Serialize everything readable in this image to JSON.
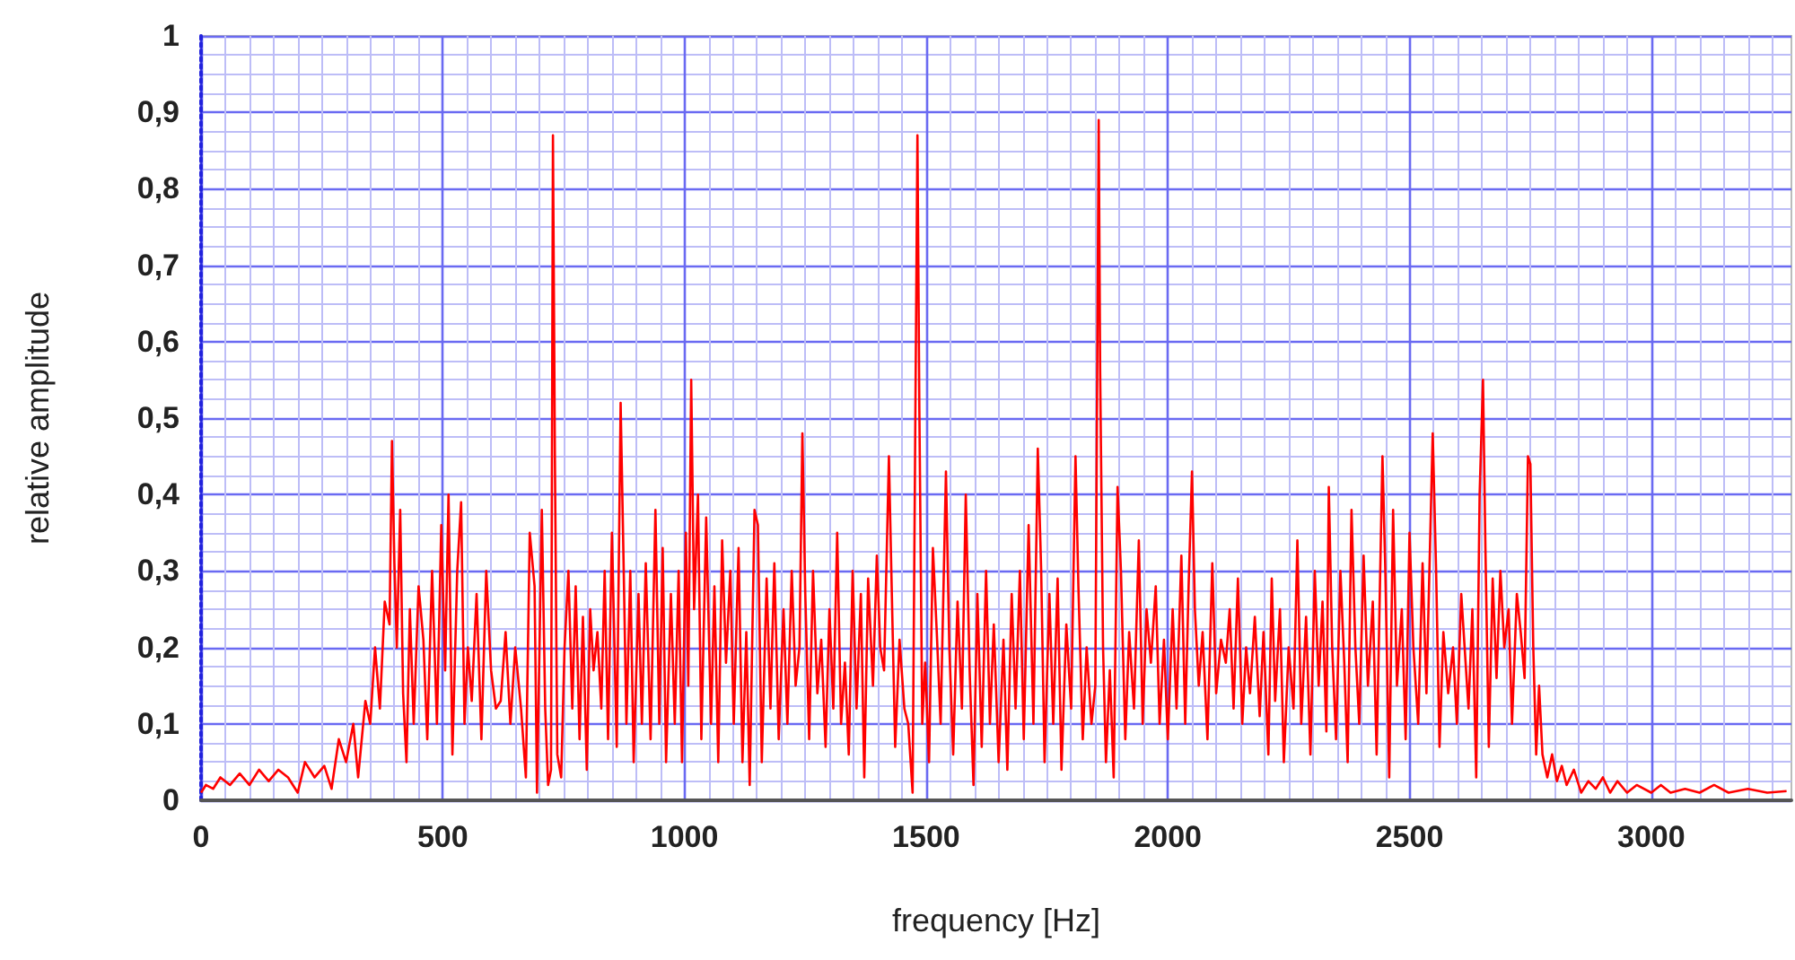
{
  "chart_data": {
    "type": "line",
    "xlabel": "frequency [Hz]",
    "ylabel": "relative amplitude",
    "xlim": [
      0,
      3290
    ],
    "xticks": [
      0,
      {
        "value": 50,
        "label": null
      },
      {
        "value": 100,
        "label": null
      },
      {
        "value": 150,
        "label": null
      },
      {
        "value": 200,
        "label": null
      },
      {
        "value": 250,
        "label": null
      },
      {
        "value": 300,
        "label": null
      },
      {
        "value": 350,
        "label": null
      },
      {
        "value": 400,
        "label": null
      },
      {
        "value": 450,
        "label": null
      },
      500,
      {
        "value": 550,
        "label": null
      },
      {
        "value": 600,
        "label": null
      },
      {
        "value": 650,
        "label": null
      },
      {
        "value": 700,
        "label": null
      },
      {
        "value": 750,
        "label": null
      },
      {
        "value": 800,
        "label": null
      },
      {
        "value": 850,
        "label": null
      },
      {
        "value": 900,
        "label": null
      },
      {
        "value": 950,
        "label": null
      },
      1000,
      {
        "value": 1050,
        "label": null
      },
      {
        "value": 1100,
        "label": null
      },
      {
        "value": 1150,
        "label": null
      },
      {
        "value": 1200,
        "label": null
      },
      {
        "value": 1250,
        "label": null
      },
      {
        "value": 1300,
        "label": null
      },
      {
        "value": 1350,
        "label": null
      },
      {
        "value": 1400,
        "label": null
      },
      {
        "value": 1450,
        "label": null
      },
      1500,
      {
        "value": 1550,
        "label": null
      },
      {
        "value": 1600,
        "label": null
      },
      {
        "value": 1650,
        "label": null
      },
      {
        "value": 1700,
        "label": null
      },
      {
        "value": 1750,
        "label": null
      },
      {
        "value": 1800,
        "label": null
      },
      {
        "value": 1850,
        "label": null
      },
      {
        "value": 1900,
        "label": null
      },
      {
        "value": 1950,
        "label": null
      },
      2000,
      {
        "value": 2050,
        "label": null
      },
      {
        "value": 2100,
        "label": null
      },
      {
        "value": 2150,
        "label": null
      },
      {
        "value": 2200,
        "label": null
      },
      {
        "value": 2250,
        "label": null
      },
      {
        "value": 2300,
        "label": null
      },
      {
        "value": 2350,
        "label": null
      },
      {
        "value": 2400,
        "label": null
      },
      {
        "value": 2450,
        "label": null
      },
      2500,
      {
        "value": 2550,
        "label": null
      },
      {
        "value": 2600,
        "label": null
      },
      {
        "value": 2650,
        "label": null
      },
      {
        "value": 2700,
        "label": null
      },
      {
        "value": 2750,
        "label": null
      },
      {
        "value": 2800,
        "label": null
      },
      {
        "value": 2850,
        "label": null
      },
      {
        "value": 2900,
        "label": null
      },
      {
        "value": 2950,
        "label": null
      },
      3000,
      {
        "value": 3050,
        "label": null
      },
      {
        "value": 3100,
        "label": null
      },
      {
        "value": 3150,
        "label": null
      },
      {
        "value": 3200,
        "label": null
      },
      {
        "value": 3250,
        "label": null
      }
    ],
    "ylim": [
      0,
      1
    ],
    "yticks": [
      0,
      {
        "value": 0.025,
        "label": null
      },
      {
        "value": 0.05,
        "label": null
      },
      {
        "value": 0.075,
        "label": null
      },
      {
        "value": 0.1,
        "label": "0,1"
      },
      {
        "value": 0.125,
        "label": null
      },
      {
        "value": 0.15,
        "label": null
      },
      {
        "value": 0.175,
        "label": null
      },
      {
        "value": 0.2,
        "label": "0,2"
      },
      {
        "value": 0.225,
        "label": null
      },
      {
        "value": 0.25,
        "label": null
      },
      {
        "value": 0.275,
        "label": null
      },
      {
        "value": 0.3,
        "label": "0,3"
      },
      {
        "value": 0.325,
        "label": null
      },
      {
        "value": 0.35,
        "label": null
      },
      {
        "value": 0.375,
        "label": null
      },
      {
        "value": 0.4,
        "label": "0,4"
      },
      {
        "value": 0.425,
        "label": null
      },
      {
        "value": 0.45,
        "label": null
      },
      {
        "value": 0.475,
        "label": null
      },
      {
        "value": 0.5,
        "label": "0,5"
      },
      {
        "value": 0.525,
        "label": null
      },
      {
        "value": 0.55,
        "label": null
      },
      {
        "value": 0.575,
        "label": null
      },
      {
        "value": 0.6,
        "label": "0,6"
      },
      {
        "value": 0.625,
        "label": null
      },
      {
        "value": 0.65,
        "label": null
      },
      {
        "value": 0.675,
        "label": null
      },
      {
        "value": 0.7,
        "label": "0,7"
      },
      {
        "value": 0.725,
        "label": null
      },
      {
        "value": 0.75,
        "label": null
      },
      {
        "value": 0.775,
        "label": null
      },
      {
        "value": 0.8,
        "label": "0,8"
      },
      {
        "value": 0.825,
        "label": null
      },
      {
        "value": 0.85,
        "label": null
      },
      {
        "value": 0.875,
        "label": null
      },
      {
        "value": 0.9,
        "label": "0,9"
      },
      {
        "value": 0.925,
        "label": null
      },
      {
        "value": 0.95,
        "label": null
      },
      {
        "value": 0.975,
        "label": null
      },
      1
    ],
    "grid": true,
    "marker": "none",
    "line_style": "solid",
    "series": [
      {
        "color": "#ff0000",
        "x": [
          0,
          10,
          25,
          40,
          60,
          80,
          100,
          120,
          140,
          160,
          180,
          200,
          215,
          235,
          255,
          270,
          285,
          300,
          315,
          325,
          340,
          350,
          360,
          370,
          380,
          390,
          395,
          400,
          405,
          412,
          418,
          425,
          432,
          440,
          450,
          460,
          468,
          478,
          488,
          497,
          505,
          512,
          520,
          530,
          538,
          545,
          552,
          560,
          570,
          580,
          590,
          600,
          610,
          620,
          630,
          640,
          650,
          662,
          672,
          680,
          690,
          695,
          705,
          712,
          718,
          724,
          728,
          732,
          737,
          745,
          752,
          760,
          768,
          775,
          783,
          790,
          798,
          805,
          812,
          820,
          828,
          835,
          842,
          850,
          860,
          868,
          873,
          880,
          888,
          895,
          905,
          912,
          920,
          930,
          940,
          948,
          955,
          962,
          972,
          980,
          988,
          995,
          1003,
          1008,
          1014,
          1020,
          1028,
          1035,
          1045,
          1055,
          1062,
          1070,
          1078,
          1086,
          1095,
          1102,
          1112,
          1120,
          1128,
          1135,
          1145,
          1152,
          1160,
          1170,
          1178,
          1186,
          1195,
          1205,
          1213,
          1222,
          1230,
          1238,
          1244,
          1250,
          1258,
          1266,
          1275,
          1283,
          1292,
          1300,
          1308,
          1316,
          1324,
          1332,
          1340,
          1348,
          1356,
          1365,
          1372,
          1380,
          1390,
          1398,
          1405,
          1413,
          1423,
          1428,
          1436,
          1445,
          1455,
          1463,
          1472,
          1482,
          1486,
          1492,
          1498,
          1506,
          1514,
          1522,
          1530,
          1541,
          1548,
          1556,
          1565,
          1574,
          1582,
          1590,
          1598,
          1606,
          1615,
          1624,
          1632,
          1640,
          1650,
          1660,
          1668,
          1677,
          1685,
          1694,
          1702,
          1712,
          1722,
          1731,
          1738,
          1745,
          1755,
          1763,
          1772,
          1780,
          1790,
          1800,
          1809,
          1815,
          1824,
          1832,
          1842,
          1850,
          1857,
          1860,
          1866,
          1872,
          1880,
          1888,
          1896,
          1903,
          1912,
          1920,
          1930,
          1940,
          1948,
          1956,
          1965,
          1975,
          1983,
          1992,
          2000,
          2010,
          2018,
          2028,
          2036,
          2043,
          2050,
          2056,
          2064,
          2072,
          2082,
          2092,
          2100,
          2110,
          2120,
          2128,
          2136,
          2145,
          2154,
          2162,
          2170,
          2180,
          2190,
          2198,
          2208,
          2215,
          2222,
          2232,
          2240,
          2250,
          2260,
          2268,
          2276,
          2286,
          2295,
          2304,
          2312,
          2320,
          2328,
          2333,
          2340,
          2348,
          2357,
          2365,
          2372,
          2380,
          2388,
          2396,
          2405,
          2414,
          2424,
          2432,
          2444,
          2450,
          2458,
          2466,
          2474,
          2484,
          2492,
          2500,
          2508,
          2518,
          2527,
          2535,
          2548,
          2555,
          2562,
          2570,
          2580,
          2590,
          2598,
          2607,
          2614,
          2622,
          2630,
          2638,
          2645,
          2652,
          2657,
          2664,
          2672,
          2680,
          2688,
          2696,
          2705,
          2712,
          2722,
          2730,
          2738,
          2745,
          2750,
          2756,
          2762,
          2768,
          2775,
          2785,
          2795,
          2805,
          2815,
          2825,
          2840,
          2855,
          2870,
          2885,
          2900,
          2915,
          2930,
          2950,
          2970,
          3000,
          3020,
          3040,
          3070,
          3100,
          3130,
          3160,
          3200,
          3240,
          3280
        ],
        "values": [
          0.01,
          0.02,
          0.015,
          0.03,
          0.02,
          0.035,
          0.02,
          0.04,
          0.025,
          0.04,
          0.03,
          0.01,
          0.05,
          0.03,
          0.045,
          0.015,
          0.08,
          0.05,
          0.1,
          0.03,
          0.13,
          0.1,
          0.2,
          0.12,
          0.26,
          0.23,
          0.47,
          0.31,
          0.2,
          0.38,
          0.14,
          0.05,
          0.25,
          0.1,
          0.28,
          0.21,
          0.08,
          0.3,
          0.1,
          0.36,
          0.17,
          0.4,
          0.06,
          0.3,
          0.39,
          0.1,
          0.2,
          0.13,
          0.27,
          0.08,
          0.3,
          0.17,
          0.12,
          0.13,
          0.22,
          0.1,
          0.2,
          0.12,
          0.03,
          0.35,
          0.28,
          0.01,
          0.38,
          0.12,
          0.02,
          0.04,
          0.87,
          0.45,
          0.06,
          0.03,
          0.2,
          0.3,
          0.12,
          0.28,
          0.08,
          0.24,
          0.04,
          0.25,
          0.17,
          0.22,
          0.12,
          0.3,
          0.08,
          0.35,
          0.07,
          0.52,
          0.35,
          0.1,
          0.3,
          0.05,
          0.27,
          0.1,
          0.31,
          0.08,
          0.38,
          0.1,
          0.33,
          0.05,
          0.27,
          0.1,
          0.3,
          0.05,
          0.35,
          0.15,
          0.55,
          0.25,
          0.4,
          0.08,
          0.37,
          0.1,
          0.28,
          0.05,
          0.34,
          0.18,
          0.3,
          0.1,
          0.33,
          0.05,
          0.22,
          0.02,
          0.38,
          0.36,
          0.05,
          0.29,
          0.12,
          0.31,
          0.08,
          0.25,
          0.1,
          0.3,
          0.15,
          0.2,
          0.48,
          0.27,
          0.08,
          0.3,
          0.14,
          0.21,
          0.07,
          0.25,
          0.12,
          0.35,
          0.1,
          0.18,
          0.06,
          0.3,
          0.12,
          0.27,
          0.03,
          0.29,
          0.15,
          0.32,
          0.2,
          0.17,
          0.45,
          0.3,
          0.07,
          0.21,
          0.12,
          0.1,
          0.01,
          0.87,
          0.51,
          0.1,
          0.18,
          0.05,
          0.33,
          0.22,
          0.1,
          0.43,
          0.2,
          0.06,
          0.26,
          0.12,
          0.4,
          0.17,
          0.02,
          0.27,
          0.07,
          0.3,
          0.1,
          0.23,
          0.05,
          0.21,
          0.04,
          0.27,
          0.12,
          0.3,
          0.08,
          0.36,
          0.1,
          0.46,
          0.3,
          0.05,
          0.27,
          0.1,
          0.29,
          0.04,
          0.23,
          0.12,
          0.45,
          0.28,
          0.08,
          0.2,
          0.1,
          0.15,
          0.89,
          0.56,
          0.2,
          0.05,
          0.17,
          0.03,
          0.41,
          0.3,
          0.08,
          0.22,
          0.12,
          0.34,
          0.1,
          0.25,
          0.18,
          0.28,
          0.1,
          0.21,
          0.08,
          0.25,
          0.12,
          0.32,
          0.1,
          0.28,
          0.43,
          0.25,
          0.15,
          0.22,
          0.08,
          0.31,
          0.14,
          0.21,
          0.18,
          0.25,
          0.12,
          0.29,
          0.1,
          0.2,
          0.14,
          0.24,
          0.11,
          0.22,
          0.06,
          0.29,
          0.13,
          0.25,
          0.05,
          0.2,
          0.12,
          0.34,
          0.1,
          0.24,
          0.06,
          0.3,
          0.15,
          0.26,
          0.09,
          0.41,
          0.2,
          0.08,
          0.3,
          0.18,
          0.05,
          0.38,
          0.2,
          0.1,
          0.32,
          0.15,
          0.26,
          0.06,
          0.45,
          0.3,
          0.03,
          0.38,
          0.15,
          0.25,
          0.08,
          0.35,
          0.2,
          0.1,
          0.31,
          0.14,
          0.48,
          0.3,
          0.07,
          0.22,
          0.14,
          0.2,
          0.1,
          0.27,
          0.2,
          0.12,
          0.25,
          0.03,
          0.4,
          0.55,
          0.33,
          0.07,
          0.29,
          0.16,
          0.3,
          0.2,
          0.25,
          0.1,
          0.27,
          0.22,
          0.16,
          0.45,
          0.44,
          0.2,
          0.06,
          0.15,
          0.06,
          0.03,
          0.06,
          0.025,
          0.045,
          0.02,
          0.04,
          0.01,
          0.025,
          0.015,
          0.03,
          0.01,
          0.025,
          0.01,
          0.02,
          0.01,
          0.02,
          0.01,
          0.015,
          0.01,
          0.02,
          0.01,
          0.015,
          0.01,
          0.012
        ]
      }
    ]
  }
}
